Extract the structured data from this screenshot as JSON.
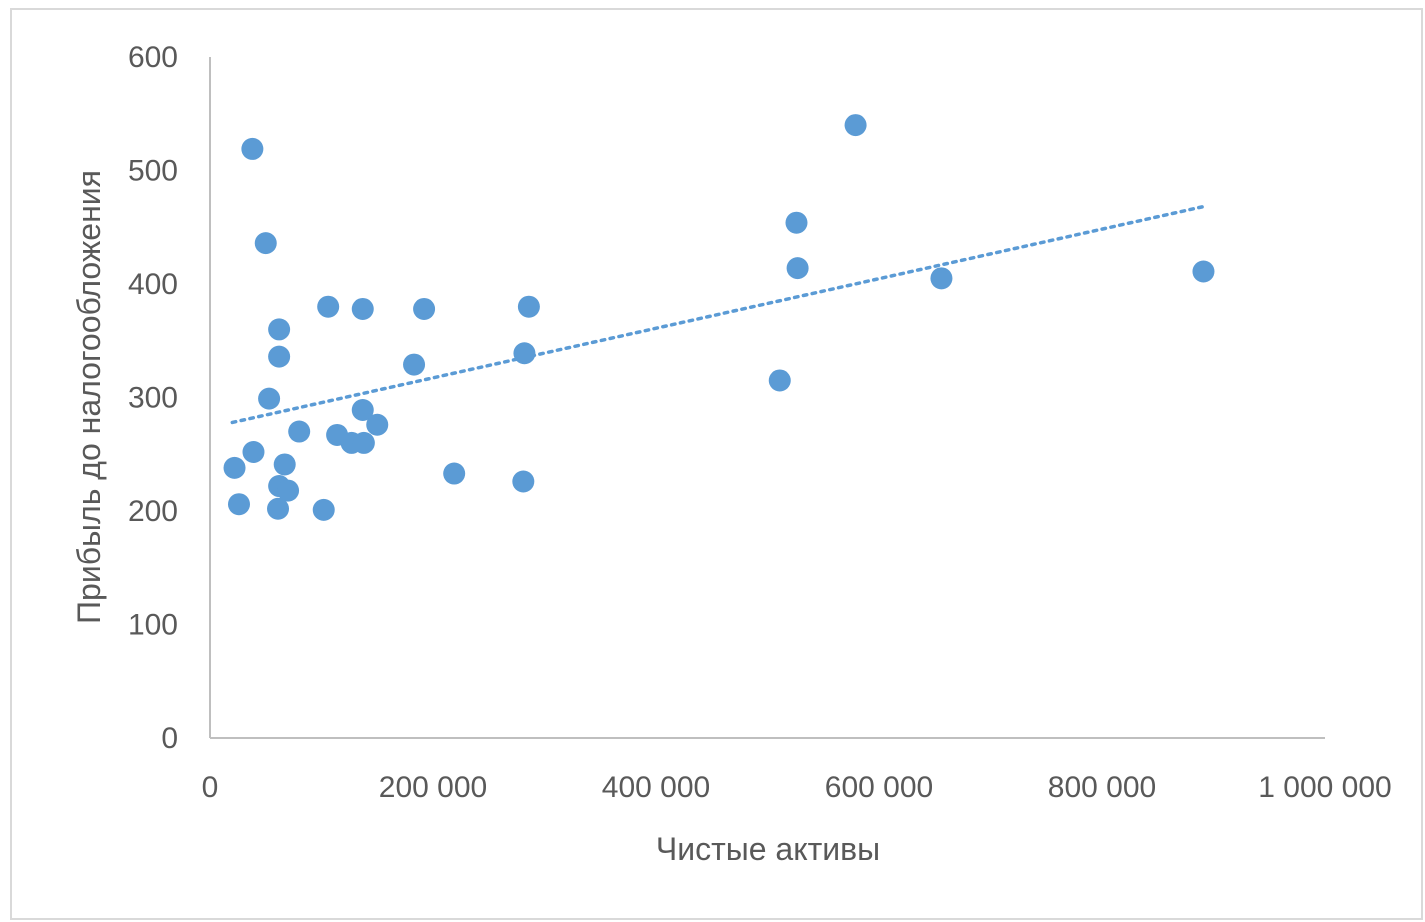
{
  "chart_data": {
    "type": "scatter",
    "xlabel": "Чистые активы",
    "ylabel": "Прибыль до налогообложения",
    "xlim": [
      0,
      1000000
    ],
    "ylim": [
      0,
      600
    ],
    "x_ticks": [
      0,
      200000,
      400000,
      600000,
      800000,
      1000000
    ],
    "x_tick_labels": [
      "0",
      "200 000",
      "400 000",
      "600 000",
      "800 000",
      "1 000 000"
    ],
    "y_ticks": [
      0,
      100,
      200,
      300,
      400,
      500,
      600
    ],
    "y_tick_labels": [
      "0",
      "100",
      "200",
      "300",
      "400",
      "500",
      "600"
    ],
    "grid": false,
    "legend": "none",
    "point_color": "#5b9bd5",
    "trendline": {
      "type": "linear",
      "style": "dotted",
      "color": "#5b9bd5",
      "x": [
        20000,
        890000
      ],
      "y": [
        278,
        468
      ]
    },
    "points": [
      {
        "x": 38000,
        "y": 519
      },
      {
        "x": 50000,
        "y": 436
      },
      {
        "x": 22000,
        "y": 238
      },
      {
        "x": 26000,
        "y": 206
      },
      {
        "x": 39000,
        "y": 252
      },
      {
        "x": 53000,
        "y": 299
      },
      {
        "x": 61000,
        "y": 202
      },
      {
        "x": 62000,
        "y": 222
      },
      {
        "x": 62000,
        "y": 336
      },
      {
        "x": 62000,
        "y": 360
      },
      {
        "x": 67000,
        "y": 241
      },
      {
        "x": 70000,
        "y": 218
      },
      {
        "x": 80000,
        "y": 270
      },
      {
        "x": 102000,
        "y": 201
      },
      {
        "x": 106000,
        "y": 380
      },
      {
        "x": 114000,
        "y": 267
      },
      {
        "x": 127000,
        "y": 260
      },
      {
        "x": 137000,
        "y": 378
      },
      {
        "x": 137000,
        "y": 289
      },
      {
        "x": 138000,
        "y": 260
      },
      {
        "x": 150000,
        "y": 276
      },
      {
        "x": 183000,
        "y": 329
      },
      {
        "x": 192000,
        "y": 378
      },
      {
        "x": 219000,
        "y": 233
      },
      {
        "x": 281000,
        "y": 226
      },
      {
        "x": 282000,
        "y": 339
      },
      {
        "x": 286000,
        "y": 380
      },
      {
        "x": 511000,
        "y": 315
      },
      {
        "x": 526000,
        "y": 454
      },
      {
        "x": 527000,
        "y": 414
      },
      {
        "x": 579000,
        "y": 540
      },
      {
        "x": 656000,
        "y": 405
      },
      {
        "x": 891000,
        "y": 411
      }
    ]
  }
}
